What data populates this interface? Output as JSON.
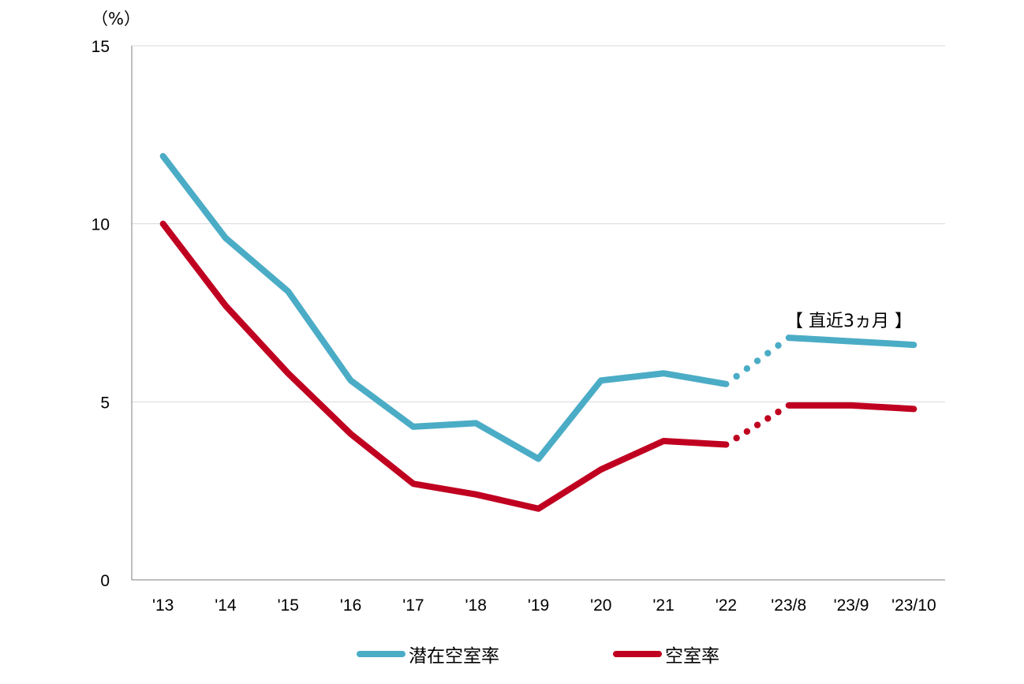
{
  "chart_data": {
    "type": "line",
    "unit_label": "（%）",
    "categories": [
      "'13",
      "'14",
      "'15",
      "'16",
      "'17",
      "'18",
      "'19",
      "'20",
      "'21",
      "'22",
      "'23/8",
      "'23/9",
      "'23/10"
    ],
    "ylim": [
      0,
      15
    ],
    "yticks": [
      0,
      5,
      10,
      15
    ],
    "grid": true,
    "legend_position": "bottom",
    "annotation": "【 直近3ヵ月 】",
    "dotted_segment": [
      "'22",
      "'23/8"
    ],
    "series": [
      {
        "name": "潜在空室率",
        "color": "#4bacc6",
        "values": [
          11.9,
          9.6,
          8.1,
          5.6,
          4.3,
          4.4,
          3.4,
          5.6,
          5.8,
          5.5,
          6.8,
          6.7,
          6.6
        ]
      },
      {
        "name": "空室率",
        "color": "#c00020",
        "values": [
          10.0,
          7.7,
          5.8,
          4.1,
          2.7,
          2.4,
          2.0,
          3.1,
          3.9,
          3.8,
          4.9,
          4.9,
          4.8
        ]
      }
    ]
  }
}
